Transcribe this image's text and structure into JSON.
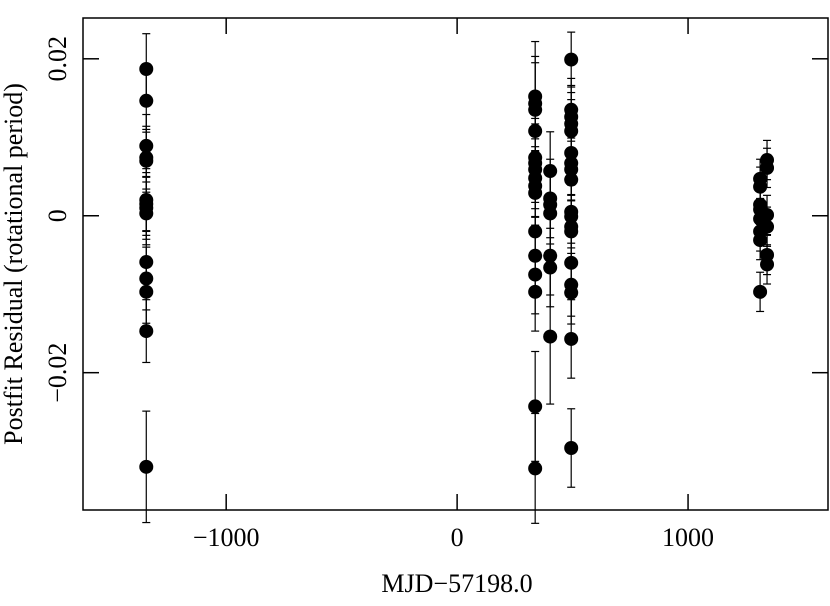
{
  "chart_data": {
    "type": "scatter",
    "xlabel": "MJD−57198.0",
    "ylabel": "Postfit Residual (rotational period)",
    "xlim": [
      -1620,
      1606
    ],
    "ylim": [
      -0.0375,
      0.0252
    ],
    "xticks": [
      {
        "value": -1000,
        "label": "−1000"
      },
      0,
      1000
    ],
    "yticks": [
      {
        "value": -0.02,
        "label": "−0.02"
      },
      0,
      0.02
    ],
    "series": [
      {
        "color": "#000000",
        "x": [
          -1346,
          -1346,
          -1346,
          -1346,
          -1346,
          -1346,
          -1346,
          -1346,
          -1346,
          -1346,
          -1346,
          -1346,
          -1346,
          -1346,
          338,
          338,
          338,
          338,
          338,
          338,
          338,
          338,
          338,
          338,
          338,
          338,
          338,
          338,
          338,
          338,
          403,
          403,
          403,
          403,
          403,
          403,
          403,
          494,
          494,
          494,
          494,
          494,
          494,
          494,
          494,
          494,
          494,
          494,
          494,
          494,
          494,
          494,
          494,
          494,
          494,
          1312,
          1312,
          1312,
          1312,
          1312,
          1312,
          1312,
          1312,
          1342,
          1342,
          1342,
          1342,
          1342,
          1342
        ],
        "values": [
          0.0187,
          0.01465,
          0.0089,
          0.0074,
          0.007,
          0.002,
          0.0015,
          0.001,
          0.0003,
          -0.0059,
          -0.008,
          -0.0097,
          -0.0147,
          -0.032,
          0.0152,
          0.0143,
          0.0135,
          0.0108,
          0.0074,
          0.0067,
          0.0059,
          0.0048,
          0.0038,
          0.0029,
          -0.002,
          -0.0051,
          -0.0075,
          -0.0097,
          -0.0243,
          -0.0322,
          0.0057,
          0.0022,
          0.0014,
          0.0003,
          -0.0051,
          -0.0066,
          -0.0154,
          0.0199,
          0.0135,
          0.0126,
          0.0117,
          0.0108,
          0.008,
          0.0067,
          0.0059,
          0.0046,
          0.0005,
          -0.0001,
          -0.0014,
          -0.002,
          -0.006,
          -0.0088,
          -0.0098,
          -0.0157,
          -0.0296,
          0.0047,
          0.0037,
          0.0014,
          0.0008,
          -0.0004,
          -0.002,
          -0.0031,
          -0.0097,
          0.0071,
          0.0061,
          0.0001,
          -0.0014,
          -0.005,
          -0.0062
        ],
        "errors": [
          0.0045,
          0.004,
          0.004,
          0.004,
          0.004,
          0.004,
          0.004,
          0.004,
          0.004,
          0.004,
          0.004,
          0.004,
          0.004,
          0.0071,
          0.007,
          0.006,
          0.006,
          0.005,
          0.005,
          0.005,
          0.005,
          0.005,
          0.005,
          0.005,
          0.005,
          0.005,
          0.005,
          0.005,
          0.007,
          0.007,
          0.005,
          0.005,
          0.005,
          0.005,
          0.005,
          0.005,
          0.0086,
          0.0035,
          0.004,
          0.004,
          0.004,
          0.004,
          0.004,
          0.004,
          0.004,
          0.004,
          0.004,
          0.004,
          0.004,
          0.004,
          0.004,
          0.004,
          0.004,
          0.005,
          0.005,
          0.0025,
          0.0025,
          0.0025,
          0.0025,
          0.0025,
          0.0025,
          0.0025,
          0.0025,
          0.0025,
          0.0025,
          0.0025,
          0.0025,
          0.0025,
          0.0025
        ]
      }
    ]
  }
}
